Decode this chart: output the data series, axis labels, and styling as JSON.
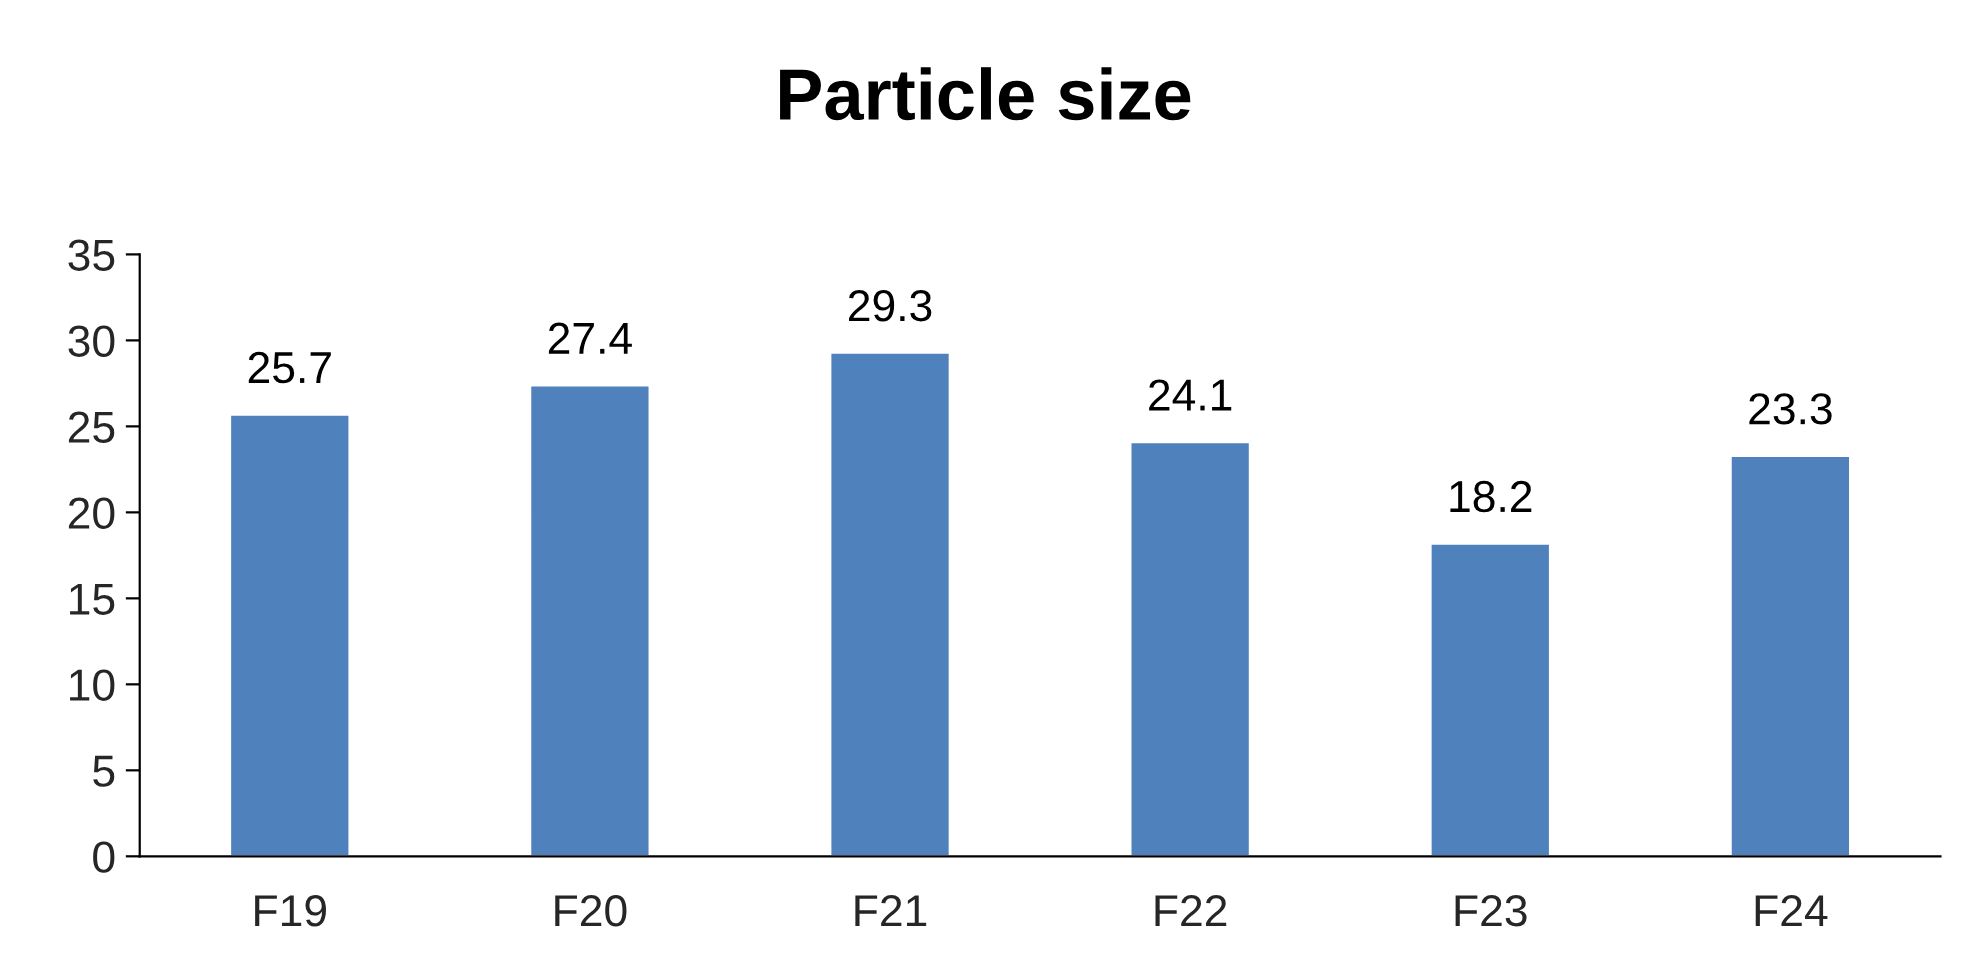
{
  "chart_data": {
    "type": "bar",
    "title": "Particle size",
    "categories": [
      "F19",
      "F20",
      "F21",
      "F22",
      "F23",
      "F24"
    ],
    "values": [
      25.7,
      27.4,
      29.3,
      24.1,
      18.2,
      23.3
    ],
    "color": "#4f81bd",
    "ylim": [
      0,
      35
    ],
    "yticks": [
      0,
      5,
      10,
      15,
      20,
      25,
      30,
      35
    ],
    "data_labels": true,
    "grid": false,
    "legend": false
  }
}
